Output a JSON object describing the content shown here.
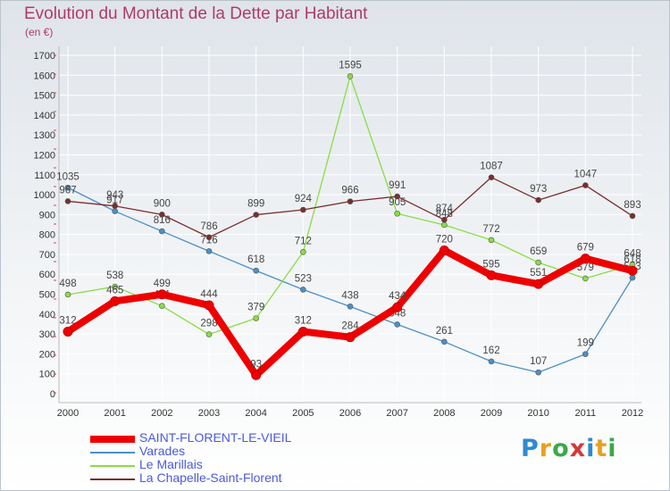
{
  "title": "Evolution du Montant de la Dette par Habitant",
  "subtitle": "(en €)",
  "brand": {
    "text": "Proxiti",
    "colors": [
      "#2e8ad0",
      "#e8a020",
      "#3aa84a",
      "#d23a3a",
      "#2e8ad0",
      "#e8a020",
      "#3aa84a"
    ]
  },
  "chart_data": {
    "type": "line",
    "ylim": [
      0,
      1700
    ],
    "yticks": [
      0,
      100,
      200,
      300,
      400,
      500,
      600,
      700,
      800,
      900,
      1000,
      1100,
      1200,
      1300,
      1400,
      1500,
      1600,
      1700
    ],
    "x": [
      "2000",
      "2001",
      "2002",
      "2003",
      "2004",
      "2005",
      "2006",
      "2007",
      "2008",
      "2009",
      "2010",
      "2011",
      "2012"
    ],
    "grid": true,
    "legend_position": "bottom-left",
    "series": [
      {
        "name": "SAINT-FLORENT-LE-VIEIL",
        "color": "#ee0000",
        "values": [
          312,
          465,
          499,
          444,
          93,
          312,
          284,
          434,
          720,
          595,
          551,
          679,
          618
        ]
      },
      {
        "name": "Varades",
        "color": "#4a90c8",
        "values": [
          1035,
          917,
          816,
          716,
          618,
          523,
          438,
          348,
          261,
          162,
          107,
          199,
          583
        ]
      },
      {
        "name": "Le Marillais",
        "color": "#88dd44",
        "values": [
          498,
          538,
          441,
          298,
          379,
          712,
          1595,
          905,
          848,
          772,
          659,
          579,
          648
        ]
      },
      {
        "name": "La Chapelle-Saint-Florent",
        "color": "#7a2e2e",
        "values": [
          967,
          943,
          900,
          786,
          899,
          924,
          966,
          991,
          874,
          1087,
          973,
          1047,
          893
        ]
      }
    ]
  }
}
